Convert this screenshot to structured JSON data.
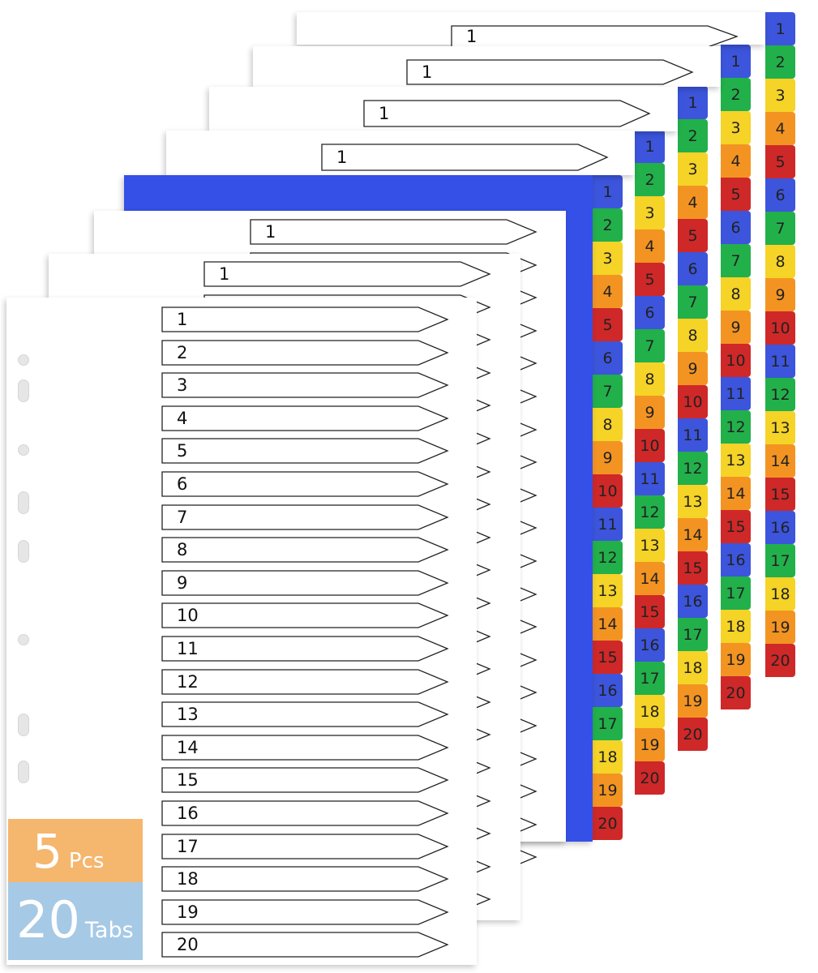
{
  "product": {
    "quantity": "5",
    "quantity_unit": "Pcs",
    "tab_count": "20",
    "tab_unit": "Tabs"
  },
  "tab_numbers": [
    "1",
    "2",
    "3",
    "4",
    "5",
    "6",
    "7",
    "8",
    "9",
    "10",
    "11",
    "12",
    "13",
    "14",
    "15",
    "16",
    "17",
    "18",
    "19",
    "20"
  ],
  "tab_colors": [
    "#3c55dc",
    "#22b04b",
    "#f5d327",
    "#f39422",
    "#cf2828"
  ],
  "sheet_colors": {
    "white": "#ffffff",
    "blue": "#3550e6"
  },
  "front_labels": [
    "1",
    "2",
    "3",
    "4",
    "5",
    "6",
    "7",
    "8",
    "9",
    "10",
    "11",
    "12",
    "13",
    "14",
    "15",
    "16",
    "17",
    "18",
    "19",
    "20"
  ],
  "back_labels": [
    "1",
    "1",
    "1",
    "1",
    "1",
    "1"
  ]
}
